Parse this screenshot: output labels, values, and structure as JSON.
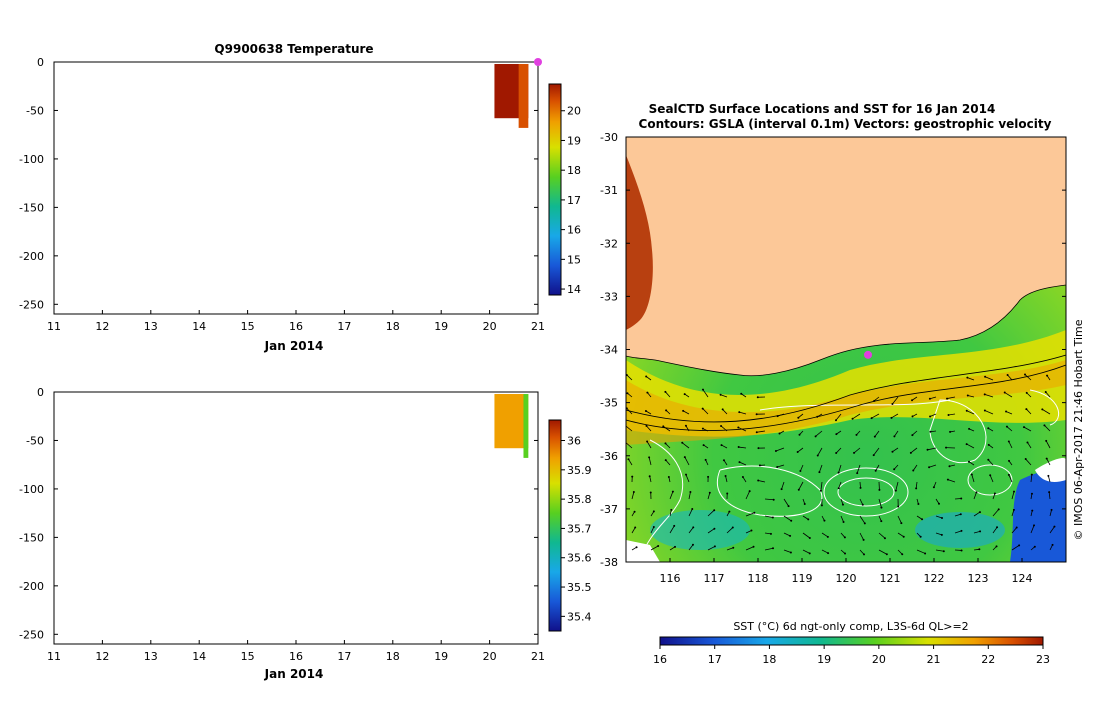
{
  "chart_data": [
    {
      "type": "heatmap",
      "title": "Q9900638  Temperature",
      "xlabel": "Jan 2014",
      "x_ticks": [
        "11",
        "12",
        "13",
        "14",
        "15",
        "16",
        "17",
        "18",
        "19",
        "20",
        "21"
      ],
      "xlim": [
        11,
        21
      ],
      "y_ticks": [
        "0",
        "-50",
        "-100",
        "-150",
        "-200",
        "-250"
      ],
      "ylim": [
        -260,
        0
      ],
      "colorbar_ticks": [
        "14",
        "15",
        "16",
        "17",
        "18",
        "19",
        "20"
      ],
      "colorbar_range": [
        13.8,
        20.9
      ],
      "profiles": [
        {
          "x_start": 20.1,
          "x_end": 20.8,
          "depth_max": -58,
          "value": 20.6
        },
        {
          "x_start": 20.6,
          "x_end": 20.8,
          "depth_max": -68,
          "value": 19.9
        }
      ],
      "marker": {
        "x": 21.0,
        "y": 0,
        "color": "#e040e0"
      }
    },
    {
      "type": "heatmap",
      "title": "",
      "xlabel": "Jan 2014",
      "x_ticks": [
        "11",
        "12",
        "13",
        "14",
        "15",
        "16",
        "17",
        "18",
        "19",
        "20",
        "21"
      ],
      "xlim": [
        11,
        21
      ],
      "y_ticks": [
        "0",
        "-50",
        "-100",
        "-150",
        "-200",
        "-250"
      ],
      "ylim": [
        -260,
        0
      ],
      "colorbar_ticks": [
        "35.4",
        "35.5",
        "35.6",
        "35.7",
        "35.8",
        "35.9",
        "36"
      ],
      "colorbar_range": [
        35.35,
        36.07
      ],
      "profiles": [
        {
          "x_start": 20.1,
          "x_end": 20.8,
          "depth_max": -58,
          "value": 35.86
        },
        {
          "x_start": 20.7,
          "x_end": 20.8,
          "depth_max": -68,
          "value": 35.7
        }
      ]
    },
    {
      "type": "heatmap",
      "title": "SealCTD Surface Locations and SST for 16 Jan 2014",
      "subtitle": "Contours: GSLA (interval 0.1m) Vectors: geostrophic velocity",
      "x_ticks": [
        "116",
        "117",
        "118",
        "119",
        "120",
        "121",
        "122",
        "123",
        "124"
      ],
      "xlim": [
        115,
        125
      ],
      "y_ticks": [
        "-30",
        "-31",
        "-32",
        "-33",
        "-34",
        "-35",
        "-36",
        "-37",
        "-38"
      ],
      "ylim": [
        -38,
        -30
      ],
      "colorbar_label": "SST (°C) 6d ngt-only comp, L3S-6d QL>=2",
      "colorbar_ticks": [
        "16",
        "17",
        "18",
        "19",
        "20",
        "21",
        "22",
        "23"
      ],
      "colorbar_range": [
        16,
        23
      ],
      "side_label": "© IMOS 06-Apr-2017 21:46 Hobart Time",
      "marker": {
        "lon": 120.5,
        "lat": -34.1,
        "color": "#e040e0"
      }
    }
  ]
}
